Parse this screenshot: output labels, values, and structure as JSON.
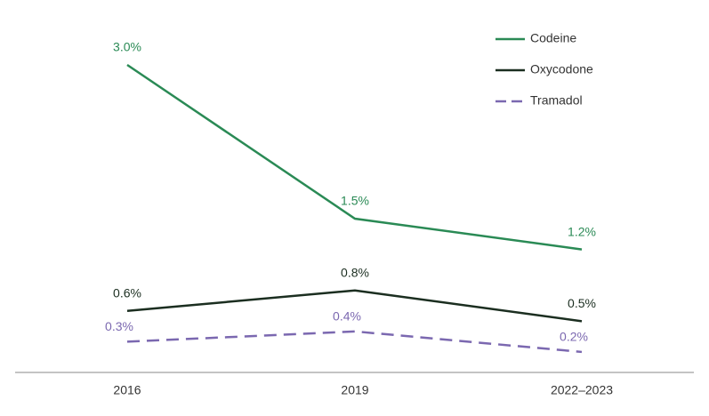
{
  "chart_data": {
    "type": "line",
    "categories": [
      "2016",
      "2019",
      "2022–2023"
    ],
    "series": [
      {
        "name": "Codeine",
        "color": "#2a8a55",
        "dash": false,
        "values": [
          3.0,
          1.5,
          1.2
        ],
        "value_labels": [
          "3.0%",
          "1.5%",
          "1.2%"
        ]
      },
      {
        "name": "Oxycodone",
        "color": "#1b2e20",
        "dash": false,
        "values": [
          0.6,
          0.8,
          0.5
        ],
        "value_labels": [
          "0.6%",
          "0.8%",
          "0.5%"
        ]
      },
      {
        "name": "Tramadol",
        "color": "#7b68b0",
        "dash": true,
        "values": [
          0.3,
          0.4,
          0.2
        ],
        "value_labels": [
          "0.3%",
          "0.4%",
          "0.2%"
        ]
      }
    ]
  }
}
